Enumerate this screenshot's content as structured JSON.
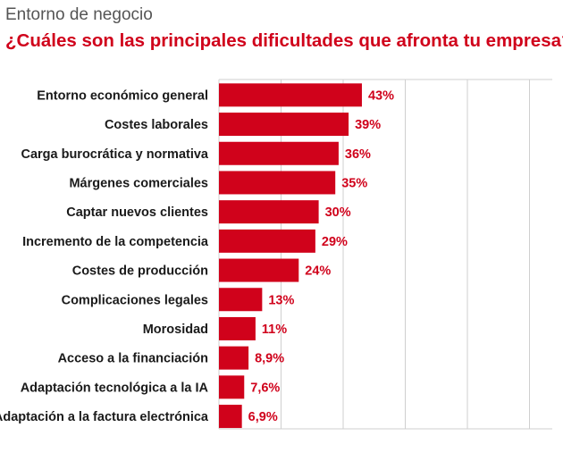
{
  "header": {
    "kicker": "Entorno de negocio",
    "title": "¿Cuáles son las principales dificultades que afronta tu empresa?"
  },
  "colors": {
    "bar": "#d0021b",
    "value_text": "#d0021b",
    "grid": "#cfcfcf"
  },
  "chart_data": {
    "type": "bar",
    "orientation": "horizontal",
    "title": "¿Cuáles son las principales dificultades que afronta tu empresa?",
    "xlabel": "",
    "ylabel": "",
    "xlim": [
      0,
      100
    ],
    "grid": true,
    "categories": [
      "Entorno económico general",
      "Costes laborales",
      "Carga burocrática y normativa",
      "Márgenes comerciales",
      "Captar nuevos clientes",
      "Incremento de la competencia",
      "Costes de producción",
      "Complicaciones legales",
      "Morosidad",
      "Acceso a la financiación",
      "Adaptación tecnológica a la IA",
      "Adaptación a la factura electrónica"
    ],
    "values": [
      43,
      39,
      36,
      35,
      30,
      29,
      24,
      13,
      11,
      8.9,
      7.6,
      6.9
    ],
    "value_labels": [
      "43%",
      "39%",
      "36%",
      "35%",
      "30%",
      "29%",
      "24%",
      "13%",
      "11%",
      "8,9%",
      "7,6%",
      "6,9%"
    ]
  }
}
